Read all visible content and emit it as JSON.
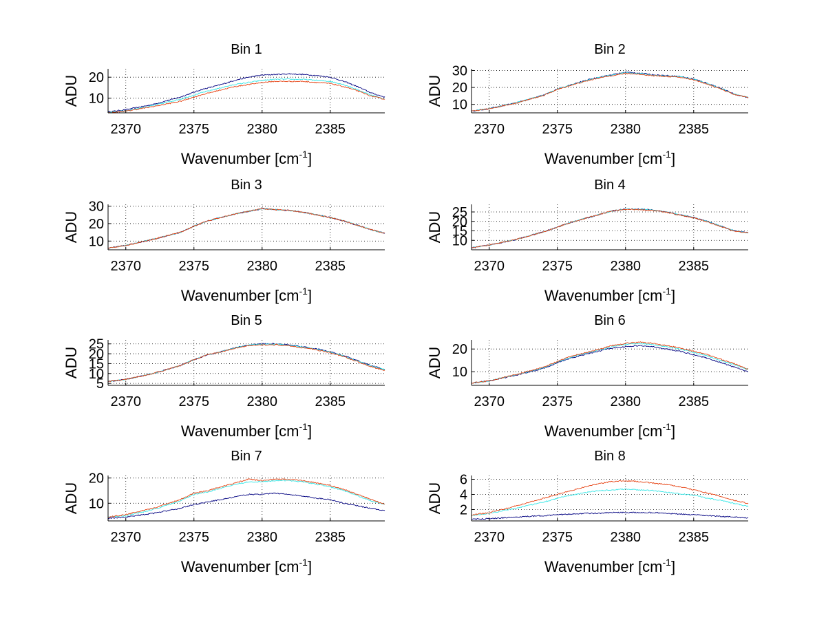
{
  "figure": {
    "background": "#ffffff",
    "series_colors": [
      "#000080",
      "#33e6e6",
      "#e64010"
    ],
    "series_names": [
      "trace-navy",
      "trace-cyan",
      "trace-orange"
    ]
  },
  "chart_data": [
    {
      "type": "line",
      "title": "Bin 1",
      "xlabel": "Wavenumber [cm",
      "xlabel_sup": "-1",
      "xlabel_end": "]",
      "ylabel": "ADU",
      "xlim": [
        2368.7,
        2389.0
      ],
      "ylim": [
        3,
        24
      ],
      "xticks": [
        2370,
        2375,
        2380,
        2385
      ],
      "yticks": [
        10,
        20
      ],
      "grid": true,
      "x": [
        2368.7,
        2370,
        2372,
        2374,
        2375.5,
        2377,
        2378,
        2379,
        2380,
        2381,
        2382,
        2383,
        2384,
        2385,
        2386,
        2387,
        2388,
        2389
      ],
      "series": [
        {
          "name": "navy",
          "values": [
            3.5,
            4.5,
            7,
            10.5,
            14,
            16.5,
            18.5,
            20,
            21,
            21.3,
            21.6,
            21.3,
            20.8,
            20,
            18,
            15.5,
            12.5,
            10.5
          ]
        },
        {
          "name": "cyan",
          "values": [
            3.2,
            4,
            6.5,
            9.5,
            12.5,
            15,
            16.5,
            17.5,
            18.5,
            19,
            19,
            19,
            18.5,
            18,
            16.5,
            14,
            11.5,
            9.5
          ]
        },
        {
          "name": "orange",
          "values": [
            3,
            3.8,
            6,
            8.5,
            11.5,
            14,
            15.5,
            16.5,
            17.5,
            18,
            18,
            18,
            17.5,
            17,
            15.5,
            13.5,
            11,
            9.5
          ]
        }
      ]
    },
    {
      "type": "line",
      "title": "Bin 2",
      "xlabel": "Wavenumber [cm",
      "xlabel_sup": "-1",
      "xlabel_end": "]",
      "ylabel": "ADU",
      "xlim": [
        2368.7,
        2389.0
      ],
      "ylim": [
        5,
        31
      ],
      "xticks": [
        2370,
        2375,
        2380,
        2385
      ],
      "yticks": [
        10,
        20,
        30
      ],
      "grid": true,
      "x": [
        2368.7,
        2370,
        2372,
        2374,
        2375,
        2376,
        2377,
        2378,
        2379,
        2380,
        2381,
        2382,
        2383,
        2384,
        2385,
        2386,
        2387,
        2388,
        2389
      ],
      "series": [
        {
          "name": "navy",
          "values": [
            6,
            7.5,
            11,
            15.5,
            19,
            21.5,
            24,
            26,
            27.5,
            29,
            28.5,
            27.5,
            27,
            26.5,
            25,
            22.5,
            19.5,
            16,
            14
          ]
        },
        {
          "name": "cyan",
          "values": [
            6,
            7.5,
            11,
            15.5,
            19,
            21.5,
            23.8,
            25.8,
            27.3,
            28.7,
            28.2,
            27.2,
            26.8,
            26.3,
            24.8,
            22.3,
            19.3,
            16,
            14
          ]
        },
        {
          "name": "orange",
          "values": [
            6,
            7.4,
            10.8,
            15.3,
            18.8,
            21.3,
            23.5,
            25.5,
            27,
            28.3,
            27.8,
            27,
            26.5,
            26,
            24.5,
            22,
            19,
            15.8,
            14
          ]
        }
      ]
    },
    {
      "type": "line",
      "title": "Bin 3",
      "xlabel": "Wavenumber [cm",
      "xlabel_sup": "-1",
      "xlabel_end": "]",
      "ylabel": "ADU",
      "xlim": [
        2368.7,
        2389.0
      ],
      "ylim": [
        5,
        31
      ],
      "xticks": [
        2370,
        2375,
        2380,
        2385
      ],
      "yticks": [
        10,
        20,
        30
      ],
      "grid": true,
      "x": [
        2368.7,
        2370,
        2372,
        2374,
        2375,
        2376,
        2377,
        2378,
        2379,
        2380,
        2381,
        2382,
        2383,
        2384,
        2385,
        2386,
        2387,
        2388,
        2389
      ],
      "series": [
        {
          "name": "navy",
          "values": [
            6,
            7.5,
            11,
            15,
            18.5,
            21.5,
            23.5,
            25.5,
            27,
            28.5,
            28,
            27.5,
            26.5,
            25,
            23.5,
            21.5,
            19,
            16.5,
            14.5
          ]
        },
        {
          "name": "cyan",
          "values": [
            6,
            7.5,
            11,
            15,
            18.5,
            21.5,
            23.5,
            25.5,
            27,
            28.5,
            28,
            27.5,
            26.5,
            25,
            23.5,
            21.5,
            19,
            16.5,
            14.5
          ]
        },
        {
          "name": "orange",
          "values": [
            6,
            7.5,
            11,
            15,
            18.5,
            21.5,
            23.5,
            25.5,
            27,
            28.5,
            28,
            27.5,
            26.5,
            25,
            23.5,
            21.5,
            19,
            16.5,
            14.5
          ]
        }
      ]
    },
    {
      "type": "line",
      "title": "Bin 4",
      "xlabel": "Wavenumber [cm",
      "xlabel_sup": "-1",
      "xlabel_end": "]",
      "ylabel": "ADU",
      "xlim": [
        2368.7,
        2389.0
      ],
      "ylim": [
        5,
        29
      ],
      "xticks": [
        2370,
        2375,
        2380,
        2385
      ],
      "yticks": [
        10,
        15,
        20,
        25
      ],
      "grid": true,
      "x": [
        2368.7,
        2370,
        2372,
        2374,
        2375,
        2376,
        2377,
        2378,
        2379,
        2380,
        2381,
        2382,
        2383,
        2384,
        2385,
        2386,
        2387,
        2388,
        2389
      ],
      "series": [
        {
          "name": "navy",
          "values": [
            6,
            7.5,
            10.5,
            14.5,
            17,
            19.5,
            21.5,
            23.5,
            25.5,
            26.5,
            26.5,
            26,
            25,
            23.5,
            22,
            20,
            17.5,
            15,
            14
          ]
        },
        {
          "name": "cyan",
          "values": [
            6,
            7.5,
            10.5,
            14.5,
            17,
            19.5,
            21.5,
            23.5,
            25.5,
            26.5,
            26.5,
            26,
            25,
            23.5,
            22,
            20,
            17.5,
            15,
            14
          ]
        },
        {
          "name": "orange",
          "values": [
            6,
            7.5,
            10.5,
            14.5,
            17,
            19.5,
            21.5,
            23.5,
            25.5,
            26.3,
            26.3,
            25.8,
            24.8,
            23.3,
            21.8,
            19.8,
            17.3,
            14.8,
            14
          ]
        }
      ]
    },
    {
      "type": "line",
      "title": "Bin 5",
      "xlabel": "Wavenumber [cm",
      "xlabel_sup": "-1",
      "xlabel_end": "]",
      "ylabel": "ADU",
      "xlim": [
        2368.7,
        2389.0
      ],
      "ylim": [
        4,
        27
      ],
      "xticks": [
        2370,
        2375,
        2380,
        2385
      ],
      "yticks": [
        5,
        10,
        15,
        20,
        25
      ],
      "grid": true,
      "x": [
        2368.7,
        2370,
        2372,
        2374,
        2375,
        2376,
        2377,
        2378,
        2379,
        2380,
        2381,
        2382,
        2383,
        2384,
        2385,
        2386,
        2387,
        2388,
        2389
      ],
      "series": [
        {
          "name": "navy",
          "values": [
            6,
            7,
            10,
            14,
            17,
            19.5,
            21,
            23,
            24.5,
            25,
            25,
            24.5,
            23.5,
            22.5,
            21,
            19,
            16.5,
            14,
            12
          ]
        },
        {
          "name": "cyan",
          "values": [
            6,
            7,
            10,
            14,
            17,
            19.5,
            21,
            23,
            24.3,
            24.8,
            24.8,
            24.3,
            23.3,
            22.3,
            20.8,
            18.8,
            16.3,
            13.8,
            12
          ]
        },
        {
          "name": "orange",
          "values": [
            6,
            7,
            10,
            14,
            17,
            19.5,
            21,
            22.8,
            24,
            24.5,
            24.5,
            24,
            23,
            22,
            20.5,
            18.5,
            16,
            13.5,
            11.5
          ]
        }
      ]
    },
    {
      "type": "line",
      "title": "Bin 6",
      "xlabel": "Wavenumber [cm",
      "xlabel_sup": "-1",
      "xlabel_end": "]",
      "ylabel": "ADU",
      "xlim": [
        2368.7,
        2389.0
      ],
      "ylim": [
        4,
        24
      ],
      "xticks": [
        2370,
        2375,
        2380,
        2385
      ],
      "yticks": [
        10,
        20
      ],
      "grid": true,
      "x": [
        2368.7,
        2370,
        2372,
        2374,
        2375,
        2376,
        2377,
        2378,
        2379,
        2380,
        2381,
        2382,
        2383,
        2384,
        2385,
        2386,
        2387,
        2388,
        2389
      ],
      "series": [
        {
          "name": "navy",
          "values": [
            5,
            6,
            8.5,
            11.5,
            14,
            16,
            17.5,
            19,
            20.5,
            21,
            21.5,
            21,
            20,
            19,
            17.5,
            16,
            14,
            12,
            10
          ]
        },
        {
          "name": "cyan",
          "values": [
            5,
            6,
            8.7,
            11.8,
            14.3,
            16.5,
            18,
            19.5,
            21,
            22,
            22.5,
            22,
            21,
            20,
            18.5,
            17,
            15,
            13,
            11
          ]
        },
        {
          "name": "orange",
          "values": [
            5,
            6,
            8.8,
            12,
            14.5,
            16.8,
            18.3,
            19.8,
            21.5,
            22.5,
            23,
            22.5,
            21.5,
            20.5,
            19,
            17.5,
            15.5,
            13.5,
            11
          ]
        }
      ]
    },
    {
      "type": "line",
      "title": "Bin 7",
      "xlabel": "Wavenumber [cm",
      "xlabel_sup": "-1",
      "xlabel_end": "]",
      "ylabel": "ADU",
      "xlim": [
        2368.7,
        2389.0
      ],
      "ylim": [
        3,
        21
      ],
      "xticks": [
        2370,
        2375,
        2380,
        2385
      ],
      "yticks": [
        10,
        20
      ],
      "grid": true,
      "x": [
        2368.7,
        2370,
        2372,
        2374,
        2375,
        2376,
        2377,
        2378,
        2379,
        2380,
        2381,
        2382,
        2383,
        2384,
        2385,
        2386,
        2387,
        2388,
        2389
      ],
      "series": [
        {
          "name": "navy",
          "values": [
            4,
            4.5,
            6,
            8,
            9.5,
            10.5,
            11.5,
            12.5,
            13.5,
            13.5,
            14,
            13.5,
            12.8,
            12,
            11.5,
            10,
            9,
            8,
            7
          ]
        },
        {
          "name": "cyan",
          "values": [
            4.5,
            5,
            7.5,
            11,
            13.5,
            14.5,
            16,
            17.5,
            18.5,
            18.5,
            19,
            19,
            18.5,
            17.5,
            16.5,
            15,
            13,
            11,
            9.5
          ]
        },
        {
          "name": "orange",
          "values": [
            4.5,
            5.5,
            8,
            11.5,
            14,
            15,
            16.5,
            18,
            19.5,
            19,
            19.5,
            19.5,
            19,
            18,
            17,
            15.5,
            13.5,
            11.5,
            9.5
          ]
        }
      ]
    },
    {
      "type": "line",
      "title": "Bin 8",
      "xlabel": "Wavenumber [cm",
      "xlabel_sup": "-1",
      "xlabel_end": "]",
      "ylabel": "ADU",
      "xlim": [
        2368.7,
        2389.0
      ],
      "ylim": [
        0.5,
        6.5
      ],
      "xticks": [
        2370,
        2375,
        2380,
        2385
      ],
      "yticks": [
        2,
        4,
        6
      ],
      "grid": true,
      "x": [
        2368.7,
        2370,
        2372,
        2374,
        2375,
        2376,
        2377,
        2378,
        2379,
        2380,
        2381,
        2382,
        2383,
        2384,
        2385,
        2386,
        2387,
        2388,
        2389
      ],
      "series": [
        {
          "name": "navy",
          "values": [
            0.7,
            0.8,
            1,
            1.2,
            1.3,
            1.4,
            1.5,
            1.5,
            1.6,
            1.6,
            1.6,
            1.6,
            1.5,
            1.4,
            1.3,
            1.2,
            1.1,
            1,
            0.9
          ]
        },
        {
          "name": "cyan",
          "values": [
            1.2,
            1.5,
            2.2,
            3,
            3.5,
            3.9,
            4.2,
            4.5,
            4.6,
            4.7,
            4.6,
            4.5,
            4.3,
            4.1,
            3.9,
            3.5,
            3.2,
            2.8,
            2.4
          ]
        },
        {
          "name": "orange",
          "values": [
            1.3,
            1.6,
            2.5,
            3.5,
            4,
            4.5,
            5,
            5.4,
            5.7,
            5.8,
            5.7,
            5.5,
            5.3,
            5,
            4.6,
            4.2,
            3.7,
            3.2,
            2.8
          ]
        }
      ]
    }
  ]
}
